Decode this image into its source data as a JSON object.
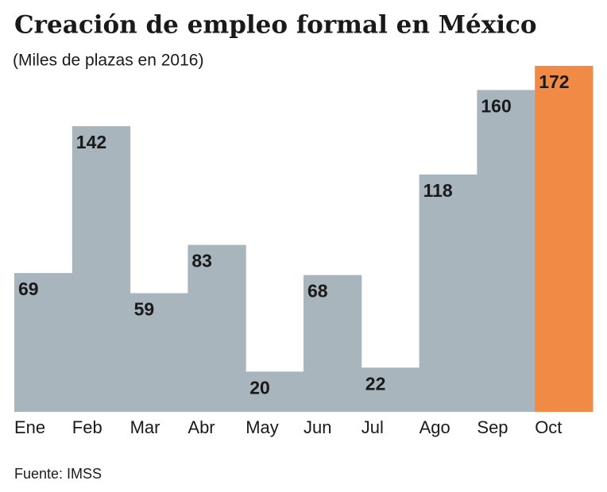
{
  "chart_data": {
    "type": "bar",
    "title": "Creación de empleo formal en México",
    "subtitle": "(Miles de plazas en 2016)",
    "categories": [
      "Ene",
      "Feb",
      "Mar",
      "Abr",
      "May",
      "Jun",
      "Jul",
      "Ago",
      "Sep",
      "Oct"
    ],
    "values": [
      69,
      142,
      59,
      83,
      20,
      68,
      22,
      118,
      160,
      172
    ],
    "colors": [
      "#a8b5bc",
      "#a8b5bc",
      "#a8b5bc",
      "#a8b5bc",
      "#a8b5bc",
      "#a8b5bc",
      "#a8b5bc",
      "#a8b5bc",
      "#a8b5bc",
      "#f08a45"
    ],
    "ylim": [
      0,
      172
    ],
    "source": "Fuente: IMSS"
  }
}
